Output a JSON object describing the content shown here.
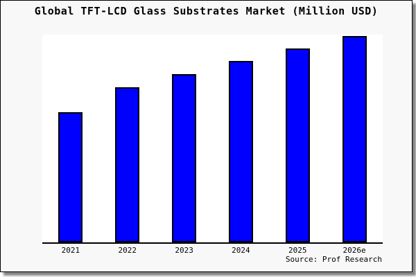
{
  "chart_data": {
    "type": "bar",
    "title": "Global TFT-LCD Glass Substrates Market (Million USD)",
    "categories": [
      "2021",
      "2022",
      "2023",
      "2024",
      "2025",
      "2026e"
    ],
    "values": [
      62.7,
      74.7,
      81.0,
      87.3,
      93.3,
      99.3
    ],
    "ylim": [
      0,
      100
    ],
    "xlabel": "",
    "ylabel": "",
    "y_axis_visible": false,
    "grid": false,
    "legend": false,
    "bar_color": "#0000ff",
    "bar_border_color": "#000000",
    "axis_color": "#000000",
    "plot_background": "#ffffff",
    "frame_background": "#f8f8f8",
    "source": "Source: Prof Research"
  }
}
